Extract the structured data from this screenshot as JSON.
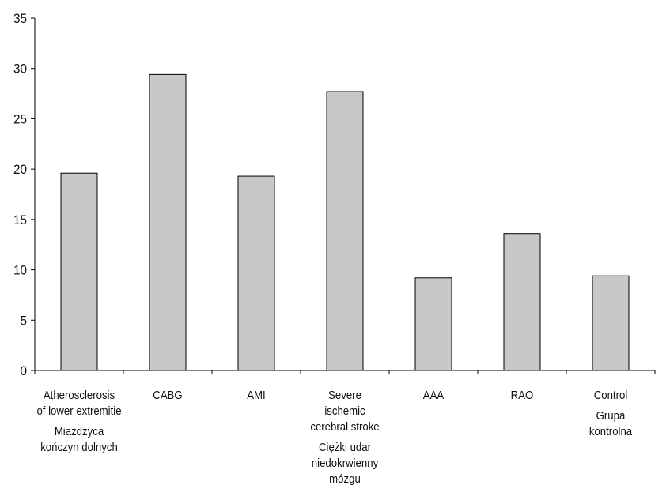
{
  "chart_data": {
    "type": "bar",
    "categories": [
      {
        "en": "Atherosclerosis\nof lower extremitie",
        "pl": "Miażdżyca\nkończyn dolnych"
      },
      {
        "en": "CABG",
        "pl": ""
      },
      {
        "en": "AMI",
        "pl": ""
      },
      {
        "en": "Severe\nischemic\ncerebral stroke",
        "pl": "Ciężki udar\nniedokrwienny\nmózgu"
      },
      {
        "en": "AAA",
        "pl": ""
      },
      {
        "en": "RAO",
        "pl": ""
      },
      {
        "en": "Control",
        "pl": "Grupa\nkontrolna"
      }
    ],
    "values": [
      19.6,
      29.4,
      19.3,
      27.7,
      9.2,
      13.6,
      9.4
    ],
    "title": "",
    "xlabel": "",
    "ylabel": "",
    "ylim": [
      0,
      35
    ],
    "yticks": [
      0,
      5,
      10,
      15,
      20,
      25,
      30,
      35
    ],
    "grid": false,
    "colors": {
      "bar_fill": "#c8c8c8",
      "bar_stroke": "#000000",
      "axis": "#000000"
    }
  }
}
